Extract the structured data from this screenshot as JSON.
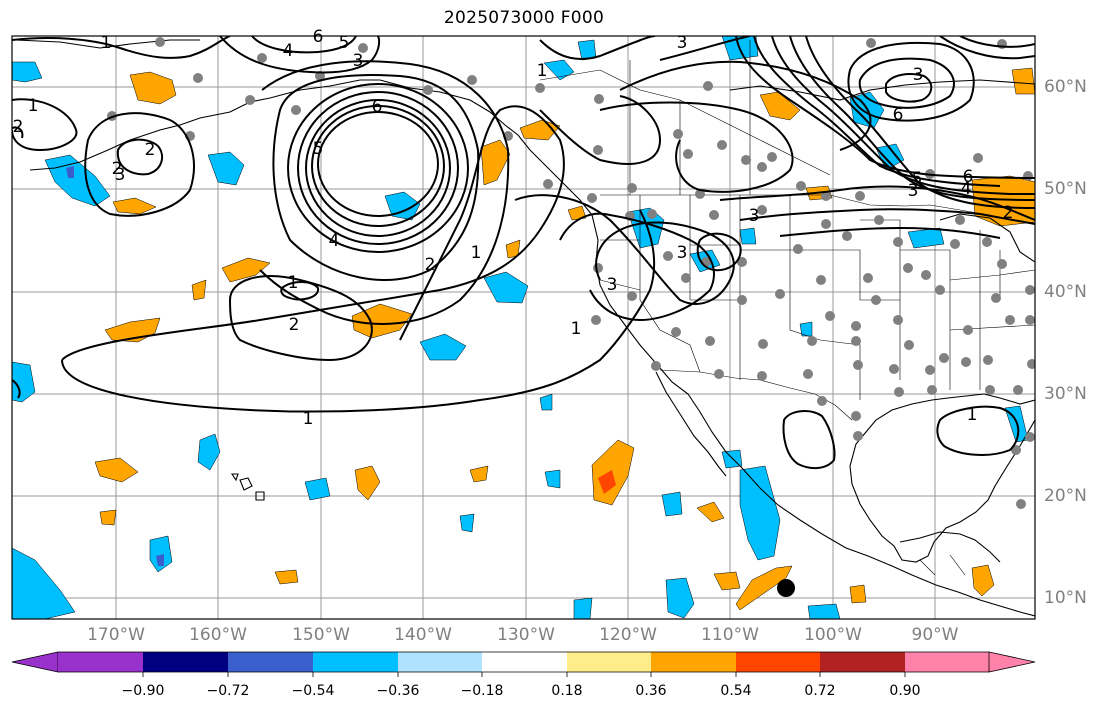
{
  "title": "2025073000 F000",
  "lon_labels": [
    "170°W",
    "160°W",
    "150°W",
    "140°W",
    "130°W",
    "120°W",
    "110°W",
    "100°W",
    "90°W"
  ],
  "lat_labels": [
    "60°N",
    "50°N",
    "40°N",
    "30°N",
    "20°N",
    "10°N"
  ],
  "contour_labels": [
    "1",
    "1",
    "2",
    "3",
    "4",
    "5",
    "6",
    "3",
    "2",
    "6",
    "4",
    "5",
    "3",
    "1",
    "2",
    "1",
    "2",
    "1",
    "3",
    "3",
    "3",
    "2",
    "1",
    "3",
    "3",
    "6",
    "5",
    "6",
    "4",
    "2",
    "1",
    "1"
  ],
  "colorbar": {
    "ticks": [
      "−0.90",
      "−0.72",
      "−0.54",
      "−0.36",
      "−0.18",
      "0.18",
      "0.36",
      "0.54",
      "0.72",
      "0.90"
    ],
    "colors": [
      "#9932CC",
      "#000080",
      "#3A5FCD",
      "#00BFFF",
      "#B0E2FF",
      "#FFFFFF",
      "#FFEC8B",
      "#FFA500",
      "#FF4500",
      "#B22222",
      "#FF82AB"
    ]
  },
  "colors": {
    "positive": "#FFA500",
    "positive_strong": "#FF4500",
    "negative": "#00BFFF",
    "negative_strong": "#3A5FCD",
    "stations": "#808080",
    "contours": "#000000",
    "grid": "#808080"
  }
}
